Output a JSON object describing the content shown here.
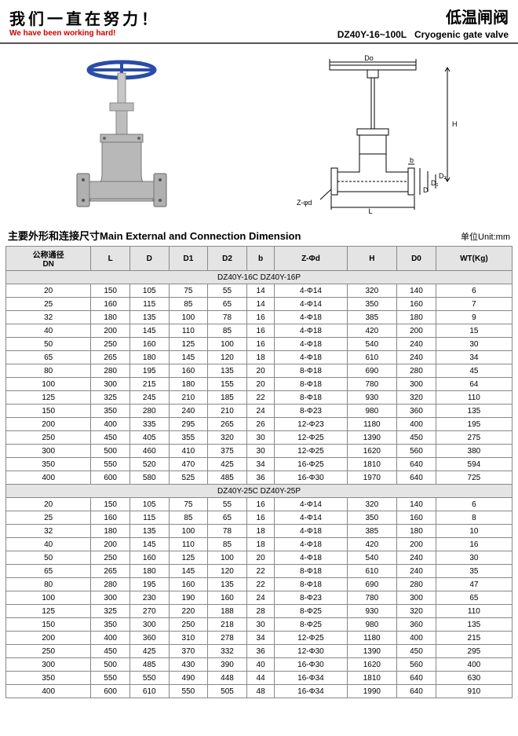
{
  "header": {
    "slogan_cn": "我们一直在努力！",
    "slogan_en": "We have been working hard!",
    "title_cn": "低温闸阀",
    "model": "DZ40Y-16~100L",
    "title_en": "Cryogenic gate valve"
  },
  "section": {
    "title": "主要外形和连接尺寸Main  External and Connection Dimension",
    "unit": "单位Unit:mm"
  },
  "table": {
    "columns": [
      "公称通径\nDN",
      "L",
      "D",
      "D1",
      "D2",
      "b",
      "Z-Φd",
      "H",
      "D0",
      "WT(Kg)"
    ],
    "group1_label": "DZ40Y-16C    DZ40Y-16P",
    "group1": [
      [
        "20",
        "150",
        "105",
        "75",
        "55",
        "14",
        "4-Φ14",
        "320",
        "140",
        "6"
      ],
      [
        "25",
        "160",
        "115",
        "85",
        "65",
        "14",
        "4-Φ14",
        "350",
        "160",
        "7"
      ],
      [
        "32",
        "180",
        "135",
        "100",
        "78",
        "16",
        "4-Φ18",
        "385",
        "180",
        "9"
      ],
      [
        "40",
        "200",
        "145",
        "110",
        "85",
        "16",
        "4-Φ18",
        "420",
        "200",
        "15"
      ],
      [
        "50",
        "250",
        "160",
        "125",
        "100",
        "16",
        "4-Φ18",
        "540",
        "240",
        "30"
      ],
      [
        "65",
        "265",
        "180",
        "145",
        "120",
        "18",
        "4-Φ18",
        "610",
        "240",
        "34"
      ],
      [
        "80",
        "280",
        "195",
        "160",
        "135",
        "20",
        "8-Φ18",
        "690",
        "280",
        "45"
      ],
      [
        "100",
        "300",
        "215",
        "180",
        "155",
        "20",
        "8-Φ18",
        "780",
        "300",
        "64"
      ],
      [
        "125",
        "325",
        "245",
        "210",
        "185",
        "22",
        "8-Φ18",
        "930",
        "320",
        "110"
      ],
      [
        "150",
        "350",
        "280",
        "240",
        "210",
        "24",
        "8-Φ23",
        "980",
        "360",
        "135"
      ],
      [
        "200",
        "400",
        "335",
        "295",
        "265",
        "26",
        "12-Φ23",
        "1180",
        "400",
        "195"
      ],
      [
        "250",
        "450",
        "405",
        "355",
        "320",
        "30",
        "12-Φ25",
        "1390",
        "450",
        "275"
      ],
      [
        "300",
        "500",
        "460",
        "410",
        "375",
        "30",
        "12-Φ25",
        "1620",
        "560",
        "380"
      ],
      [
        "350",
        "550",
        "520",
        "470",
        "425",
        "34",
        "16-Φ25",
        "1810",
        "640",
        "594"
      ],
      [
        "400",
        "600",
        "580",
        "525",
        "485",
        "36",
        "16-Φ30",
        "1970",
        "640",
        "725"
      ]
    ],
    "group2_label": "DZ40Y-25C    DZ40Y-25P",
    "group2": [
      [
        "20",
        "150",
        "105",
        "75",
        "55",
        "16",
        "4-Φ14",
        "320",
        "140",
        "6"
      ],
      [
        "25",
        "160",
        "115",
        "85",
        "65",
        "16",
        "4-Φ14",
        "350",
        "160",
        "8"
      ],
      [
        "32",
        "180",
        "135",
        "100",
        "78",
        "18",
        "4-Φ18",
        "385",
        "180",
        "10"
      ],
      [
        "40",
        "200",
        "145",
        "110",
        "85",
        "18",
        "4-Φ18",
        "420",
        "200",
        "16"
      ],
      [
        "50",
        "250",
        "160",
        "125",
        "100",
        "20",
        "4-Φ18",
        "540",
        "240",
        "30"
      ],
      [
        "65",
        "265",
        "180",
        "145",
        "120",
        "22",
        "8-Φ18",
        "610",
        "240",
        "35"
      ],
      [
        "80",
        "280",
        "195",
        "160",
        "135",
        "22",
        "8-Φ18",
        "690",
        "280",
        "47"
      ],
      [
        "100",
        "300",
        "230",
        "190",
        "160",
        "24",
        "8-Φ23",
        "780",
        "300",
        "65"
      ],
      [
        "125",
        "325",
        "270",
        "220",
        "188",
        "28",
        "8-Φ25",
        "930",
        "320",
        "110"
      ],
      [
        "150",
        "350",
        "300",
        "250",
        "218",
        "30",
        "8-Φ25",
        "980",
        "360",
        "135"
      ],
      [
        "200",
        "400",
        "360",
        "310",
        "278",
        "34",
        "12-Φ25",
        "1180",
        "400",
        "215"
      ],
      [
        "250",
        "450",
        "425",
        "370",
        "332",
        "36",
        "12-Φ30",
        "1390",
        "450",
        "295"
      ],
      [
        "300",
        "500",
        "485",
        "430",
        "390",
        "40",
        "16-Φ30",
        "1620",
        "560",
        "400"
      ],
      [
        "350",
        "550",
        "550",
        "490",
        "448",
        "44",
        "16-Φ34",
        "1810",
        "640",
        "630"
      ],
      [
        "400",
        "600",
        "610",
        "550",
        "505",
        "48",
        "16-Φ34",
        "1990",
        "640",
        "910"
      ]
    ]
  },
  "diagram_labels": {
    "Do": "Do",
    "H": "H",
    "L": "L",
    "D": "D",
    "D1": "D₁",
    "D2": "D₂",
    "b": "b",
    "Zfd": "Z-φd"
  },
  "colors": {
    "handwheel": "#2a4ca8",
    "body": "#b8b8b8",
    "header_rule": "#555555",
    "th_bg": "#e4e4e4",
    "border": "#888888",
    "slogan_red": "#cc0000"
  }
}
